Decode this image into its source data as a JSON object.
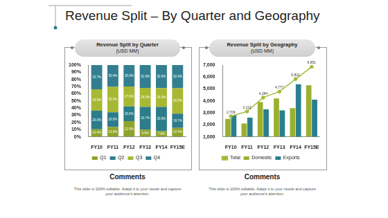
{
  "title": "Revenue Split – By Quarter and Geography",
  "chart_data": [
    {
      "type": "bar",
      "title": "Revenue Split by Quarter",
      "subtitle": "(USD MM)",
      "stacked": true,
      "categories": [
        "FY10",
        "FY11",
        "FY12",
        "FY13",
        "FY14",
        "FY15E"
      ],
      "series": [
        {
          "name": "Q1",
          "color": "#8fa42a",
          "values": [
            10.4,
            13.6,
            21.8,
            9.9,
            7.8,
            12.4
          ],
          "value_labels": [
            "10.4%",
            "13.6%",
            "21.8%",
            "9.9%",
            "7.8%",
            "12.4%"
          ]
        },
        {
          "name": "Q2",
          "color": "#2c7c8a",
          "values": [
            26.0,
            20.5,
            20.6,
            31.7,
            33.9,
            19.7
          ],
          "value_labels": [
            "26.0%",
            "20.5%",
            "20.6%",
            "31.7%",
            "33.9%",
            "19.7%"
          ]
        },
        {
          "name": "Q3",
          "color": "#a8b832",
          "values": [
            29.9,
            35.5,
            27.6,
            26.5,
            26.3,
            35.5
          ],
          "value_labels": [
            "29.9%",
            "35.5%",
            "27.6%",
            "26.5%",
            "26.3%",
            "35.5%"
          ]
        },
        {
          "name": "Q4",
          "color": "#337f91",
          "values": [
            33.7,
            30.4,
            30.0,
            31.9,
            32.0,
            32.4
          ],
          "value_labels": [
            "33.7%",
            "30.4%",
            "30.0%",
            "31.9%",
            "32.0%",
            "32.4%"
          ]
        }
      ],
      "ylim": [
        0,
        100
      ],
      "yticks": [
        {
          "value": 0,
          "label": "0%"
        },
        {
          "value": 10,
          "label": "10%"
        },
        {
          "value": 20,
          "label": "20%"
        },
        {
          "value": 30,
          "label": "30%"
        },
        {
          "value": 40,
          "label": "40%"
        },
        {
          "value": 50,
          "label": "50%"
        },
        {
          "value": 60,
          "label": "60%"
        },
        {
          "value": 70,
          "label": "70%"
        },
        {
          "value": 80,
          "label": "80%"
        },
        {
          "value": 90,
          "label": "90%"
        },
        {
          "value": 100,
          "label": "100%"
        }
      ],
      "grid": false,
      "legend": "bottom",
      "data_labels": true
    },
    {
      "type": "bar",
      "title": "Revenue Split by Geography",
      "subtitle": "(USD MM)",
      "categories": [
        "FY10",
        "FY11",
        "FY12",
        "FY13",
        "FY14",
        "FY15E"
      ],
      "series": [
        {
          "name": "Domestic",
          "color": "#9bb030",
          "values": [
            2500,
            2100,
            3900,
            4200,
            3400,
            5300
          ]
        },
        {
          "name": "Exports",
          "color": "#2a7f8e",
          "values": [
            2800,
            2600,
            3300,
            3200,
            5400,
            4100
          ]
        },
        {
          "name": "Total",
          "type": "line",
          "color": "#a3bd3a",
          "marker": "circle",
          "data_labels": true,
          "values": [
            2709,
            3121,
            4284,
            4777,
            5821,
            6851
          ],
          "value_labels": [
            "2,709",
            "3,121",
            "4,284",
            "4,777",
            "5,821",
            "6,851"
          ]
        }
      ],
      "ylim": [
        1000,
        7000
      ],
      "yticks": [
        {
          "value": 1000,
          "label": "1,000"
        },
        {
          "value": 2000,
          "label": "2,000"
        },
        {
          "value": 3000,
          "label": "3,000"
        },
        {
          "value": 4000,
          "label": "4,000"
        },
        {
          "value": 5000,
          "label": "5,000"
        },
        {
          "value": 6000,
          "label": "6,000"
        },
        {
          "value": 7000,
          "label": "7,000"
        }
      ],
      "grid": false,
      "legend": "bottom"
    }
  ],
  "comments": [
    {
      "heading": "Comments",
      "text": "This slide is 100% editable. Adapt it to your needs and capture your audience's attention."
    },
    {
      "heading": "Comments",
      "text": "This slide is 100% editable. Adapt it to your needs and capture your audience's attention."
    }
  ]
}
